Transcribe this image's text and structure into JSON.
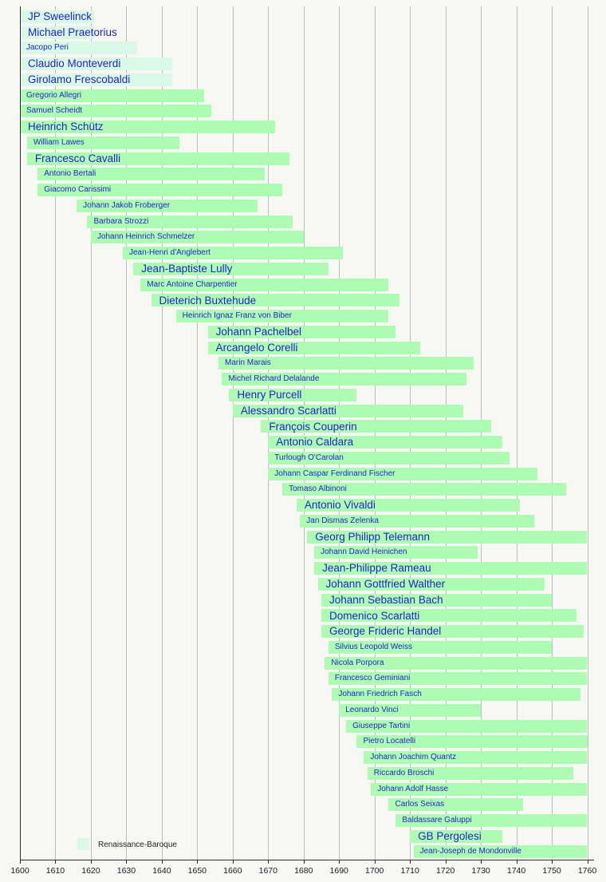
{
  "figure": {
    "background": "#f7f7f4"
  },
  "chart_data": {
    "type": "bar",
    "subtype": "horizontal-timeline-gantt",
    "title": "",
    "xlabel": "",
    "ylabel": "",
    "xlim": [
      1600,
      1760
    ],
    "x_ticks": [
      1600,
      1610,
      1620,
      1630,
      1640,
      1650,
      1660,
      1670,
      1680,
      1690,
      1700,
      1710,
      1720,
      1730,
      1740,
      1750,
      1760
    ],
    "grid": true,
    "legend": {
      "position": "bottom-left",
      "entries": [
        {
          "label": "Renaissance-Baroque",
          "color": "#d9f8e5"
        }
      ]
    },
    "colors": {
      "renaissance-baroque": "#d9f8e5",
      "baroque": "#aefcb4",
      "label_text": "#2222cc",
      "gridline": "#bdbdbd",
      "axis": "#2b2b2b",
      "tick_label": "#1a1a1a",
      "legend_text": "#222222"
    },
    "bars": [
      {
        "name": "JP Sweelinck",
        "start": 1600,
        "end": 1621,
        "clip_start": true,
        "clip_end": false,
        "group": "renaissance-baroque",
        "label_size": "large"
      },
      {
        "name": "Michael Praetorius",
        "start": 1600,
        "end": 1621,
        "clip_start": true,
        "clip_end": false,
        "group": "renaissance-baroque",
        "label_size": "large"
      },
      {
        "name": "Jacopo Peri",
        "start": 1600,
        "end": 1633,
        "clip_start": true,
        "clip_end": false,
        "group": "renaissance-baroque",
        "label_size": "small"
      },
      {
        "name": "Claudio Monteverdi",
        "start": 1600,
        "end": 1643,
        "clip_start": true,
        "clip_end": false,
        "group": "renaissance-baroque",
        "label_size": "large"
      },
      {
        "name": "Girolamo Frescobaldi",
        "start": 1600,
        "end": 1643,
        "clip_start": true,
        "clip_end": false,
        "group": "renaissance-baroque",
        "label_size": "large"
      },
      {
        "name": "Gregorio Allegri",
        "start": 1600,
        "end": 1652,
        "clip_start": true,
        "clip_end": false,
        "group": "baroque",
        "label_size": "small"
      },
      {
        "name": "Samuel Scheidt",
        "start": 1600,
        "end": 1654,
        "clip_start": true,
        "clip_end": false,
        "group": "baroque",
        "label_size": "small"
      },
      {
        "name": "Heinrich Schütz",
        "start": 1600,
        "end": 1672,
        "clip_start": true,
        "clip_end": false,
        "group": "baroque",
        "label_size": "large"
      },
      {
        "name": "William Lawes",
        "start": 1602,
        "end": 1645,
        "clip_start": false,
        "clip_end": false,
        "group": "baroque",
        "label_size": "small"
      },
      {
        "name": "Francesco Cavalli",
        "start": 1602,
        "end": 1676,
        "clip_start": false,
        "clip_end": false,
        "group": "baroque",
        "label_size": "large"
      },
      {
        "name": "Antonio Bertali",
        "start": 1605,
        "end": 1669,
        "clip_start": false,
        "clip_end": false,
        "group": "baroque",
        "label_size": "small"
      },
      {
        "name": "Giacomo Carissimi",
        "start": 1605,
        "end": 1674,
        "clip_start": false,
        "clip_end": false,
        "group": "baroque",
        "label_size": "small"
      },
      {
        "name": "Johann Jakob Froberger",
        "start": 1616,
        "end": 1667,
        "clip_start": false,
        "clip_end": false,
        "group": "baroque",
        "label_size": "small"
      },
      {
        "name": "Barbara Strozzi",
        "start": 1619,
        "end": 1677,
        "clip_start": false,
        "clip_end": false,
        "group": "baroque",
        "label_size": "small"
      },
      {
        "name": "Johann Heinrich Schmelzer",
        "start": 1620,
        "end": 1680,
        "clip_start": false,
        "clip_end": false,
        "group": "baroque",
        "label_size": "small"
      },
      {
        "name": "Jean-Henri d'Anglebert",
        "start": 1629,
        "end": 1691,
        "clip_start": false,
        "clip_end": false,
        "group": "baroque",
        "label_size": "small"
      },
      {
        "name": "Jean-Baptiste Lully",
        "start": 1632,
        "end": 1687,
        "clip_start": false,
        "clip_end": false,
        "group": "baroque",
        "label_size": "large"
      },
      {
        "name": "Marc Antoine Charpentier",
        "start": 1634,
        "end": 1704,
        "clip_start": false,
        "clip_end": false,
        "group": "baroque",
        "label_size": "small"
      },
      {
        "name": "Dieterich Buxtehude",
        "start": 1637,
        "end": 1707,
        "clip_start": false,
        "clip_end": false,
        "group": "baroque",
        "label_size": "large"
      },
      {
        "name": "Heinrich Ignaz Franz von Biber",
        "start": 1644,
        "end": 1704,
        "clip_start": false,
        "clip_end": false,
        "group": "baroque",
        "label_size": "small"
      },
      {
        "name": "Johann Pachelbel",
        "start": 1653,
        "end": 1706,
        "clip_start": false,
        "clip_end": false,
        "group": "baroque",
        "label_size": "large"
      },
      {
        "name": "Arcangelo Corelli",
        "start": 1653,
        "end": 1713,
        "clip_start": false,
        "clip_end": false,
        "group": "baroque",
        "label_size": "large"
      },
      {
        "name": "Marin Marais",
        "start": 1656,
        "end": 1728,
        "clip_start": false,
        "clip_end": false,
        "group": "baroque",
        "label_size": "small"
      },
      {
        "name": "Michel Richard Delalande",
        "start": 1657,
        "end": 1726,
        "clip_start": false,
        "clip_end": false,
        "group": "baroque",
        "label_size": "small"
      },
      {
        "name": "Henry Purcell",
        "start": 1659,
        "end": 1695,
        "clip_start": false,
        "clip_end": false,
        "group": "baroque",
        "label_size": "large"
      },
      {
        "name": "Alessandro Scarlatti",
        "start": 1660,
        "end": 1725,
        "clip_start": false,
        "clip_end": false,
        "group": "baroque",
        "label_size": "large"
      },
      {
        "name": "François Couperin",
        "start": 1668,
        "end": 1733,
        "clip_start": false,
        "clip_end": false,
        "group": "baroque",
        "label_size": "large"
      },
      {
        "name": "Antonio Caldara",
        "start": 1670,
        "end": 1736,
        "clip_start": false,
        "clip_end": false,
        "group": "baroque",
        "label_size": "large"
      },
      {
        "name": "Turlough O'Carolan",
        "start": 1670,
        "end": 1738,
        "clip_start": false,
        "clip_end": false,
        "group": "baroque",
        "label_size": "small"
      },
      {
        "name": "Johann Caspar Ferdinand Fischer",
        "start": 1670,
        "end": 1746,
        "clip_start": false,
        "clip_end": false,
        "group": "baroque",
        "label_size": "small"
      },
      {
        "name": "Tomaso Albinoni",
        "start": 1674,
        "end": 1754,
        "clip_start": false,
        "clip_end": false,
        "group": "baroque",
        "label_size": "small"
      },
      {
        "name": "Antonio Vivaldi",
        "start": 1678,
        "end": 1741,
        "clip_start": false,
        "clip_end": false,
        "group": "baroque",
        "label_size": "large"
      },
      {
        "name": "Jan Dismas Zelenka",
        "start": 1679,
        "end": 1745,
        "clip_start": false,
        "clip_end": false,
        "group": "baroque",
        "label_size": "small"
      },
      {
        "name": "Georg Philipp Telemann",
        "start": 1681,
        "end": 1760,
        "clip_start": false,
        "clip_end": true,
        "group": "baroque",
        "label_size": "large"
      },
      {
        "name": "Johann David Heinichen",
        "start": 1683,
        "end": 1729,
        "clip_start": false,
        "clip_end": false,
        "group": "baroque",
        "label_size": "small"
      },
      {
        "name": "Jean-Philippe Rameau",
        "start": 1683,
        "end": 1760,
        "clip_start": false,
        "clip_end": true,
        "group": "baroque",
        "label_size": "large"
      },
      {
        "name": "Johann Gottfried Walther",
        "start": 1684,
        "end": 1748,
        "clip_start": false,
        "clip_end": false,
        "group": "baroque",
        "label_size": "large"
      },
      {
        "name": "Johann Sebastian Bach",
        "start": 1685,
        "end": 1750,
        "clip_start": false,
        "clip_end": false,
        "group": "baroque",
        "label_size": "large"
      },
      {
        "name": "Domenico Scarlatti",
        "start": 1685,
        "end": 1757,
        "clip_start": false,
        "clip_end": false,
        "group": "baroque",
        "label_size": "large"
      },
      {
        "name": "George Frideric Handel",
        "start": 1685,
        "end": 1759,
        "clip_start": false,
        "clip_end": false,
        "group": "baroque",
        "label_size": "large"
      },
      {
        "name": "Silvius Leopold Weiss",
        "start": 1687,
        "end": 1750,
        "clip_start": false,
        "clip_end": false,
        "group": "baroque",
        "label_size": "small"
      },
      {
        "name": "Nicola Porpora",
        "start": 1686,
        "end": 1760,
        "clip_start": false,
        "clip_end": true,
        "group": "baroque",
        "label_size": "small"
      },
      {
        "name": "Francesco Geminiani",
        "start": 1687,
        "end": 1760,
        "clip_start": false,
        "clip_end": true,
        "group": "baroque",
        "label_size": "small"
      },
      {
        "name": "Johann Friedrich Fasch",
        "start": 1688,
        "end": 1758,
        "clip_start": false,
        "clip_end": false,
        "group": "baroque",
        "label_size": "small"
      },
      {
        "name": "Leonardo Vinci",
        "start": 1690,
        "end": 1730,
        "clip_start": false,
        "clip_end": false,
        "group": "baroque",
        "label_size": "small"
      },
      {
        "name": "Giuseppe Tartini",
        "start": 1692,
        "end": 1760,
        "clip_start": false,
        "clip_end": true,
        "group": "baroque",
        "label_size": "small"
      },
      {
        "name": "Pietro Locatelli",
        "start": 1695,
        "end": 1760,
        "clip_start": false,
        "clip_end": true,
        "group": "baroque",
        "label_size": "small"
      },
      {
        "name": "Johann Joachim Quantz",
        "start": 1697,
        "end": 1760,
        "clip_start": false,
        "clip_end": true,
        "group": "baroque",
        "label_size": "small"
      },
      {
        "name": "Riccardo Broschi",
        "start": 1698,
        "end": 1756,
        "clip_start": false,
        "clip_end": false,
        "group": "baroque",
        "label_size": "small"
      },
      {
        "name": "Johann Adolf Hasse",
        "start": 1699,
        "end": 1760,
        "clip_start": false,
        "clip_end": true,
        "group": "baroque",
        "label_size": "small"
      },
      {
        "name": "Carlos Seixas",
        "start": 1704,
        "end": 1742,
        "clip_start": false,
        "clip_end": false,
        "group": "baroque",
        "label_size": "small"
      },
      {
        "name": "Baldassare Galuppi",
        "start": 1706,
        "end": 1760,
        "clip_start": false,
        "clip_end": true,
        "group": "baroque",
        "label_size": "small"
      },
      {
        "name": "GB Pergolesi",
        "start": 1710,
        "end": 1736,
        "clip_start": false,
        "clip_end": false,
        "group": "baroque",
        "label_size": "large"
      },
      {
        "name": "Jean-Joseph de Mondonville",
        "start": 1711,
        "end": 1760,
        "clip_start": false,
        "clip_end": true,
        "group": "baroque",
        "label_size": "small"
      }
    ]
  }
}
